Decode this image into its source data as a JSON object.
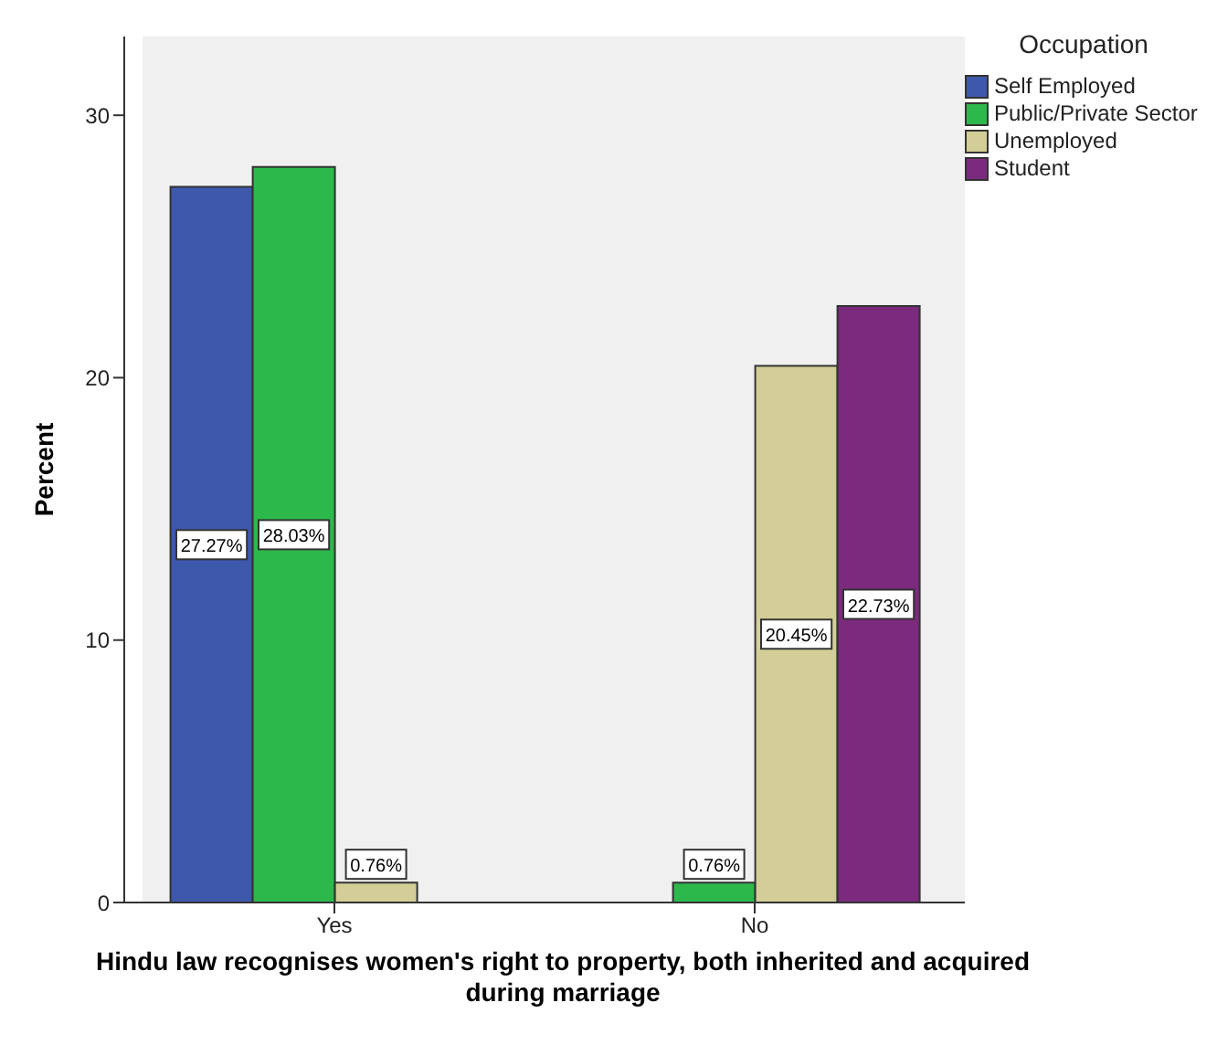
{
  "chart_data": {
    "type": "bar",
    "xlabel": "Hindu law recognises women's right to property, both inherited and acquired during marriage",
    "ylabel": "Percent",
    "legend_title": "Occupation",
    "legend": "top right",
    "categories": [
      "Yes",
      "No"
    ],
    "series": [
      {
        "name": "Self Employed",
        "color": "#3e58ac",
        "values": [
          27.27,
          null
        ],
        "value_labels": [
          "27.27%",
          null
        ]
      },
      {
        "name": "Public/Private Sector",
        "color": "#2db84b",
        "values": [
          28.03,
          0.76
        ],
        "value_labels": [
          "28.03%",
          "0.76%"
        ]
      },
      {
        "name": "Unemployed",
        "color": "#d3ce97",
        "values": [
          0.76,
          20.45
        ],
        "value_labels": [
          "0.76%",
          "20.45%"
        ]
      },
      {
        "name": "Student",
        "color": "#7b2a7d",
        "values": [
          null,
          22.73
        ],
        "value_labels": [
          null,
          "22.73%"
        ]
      }
    ],
    "ylim": [
      0,
      33
    ],
    "yticks": [
      0,
      10,
      20,
      30
    ],
    "grid": false
  }
}
